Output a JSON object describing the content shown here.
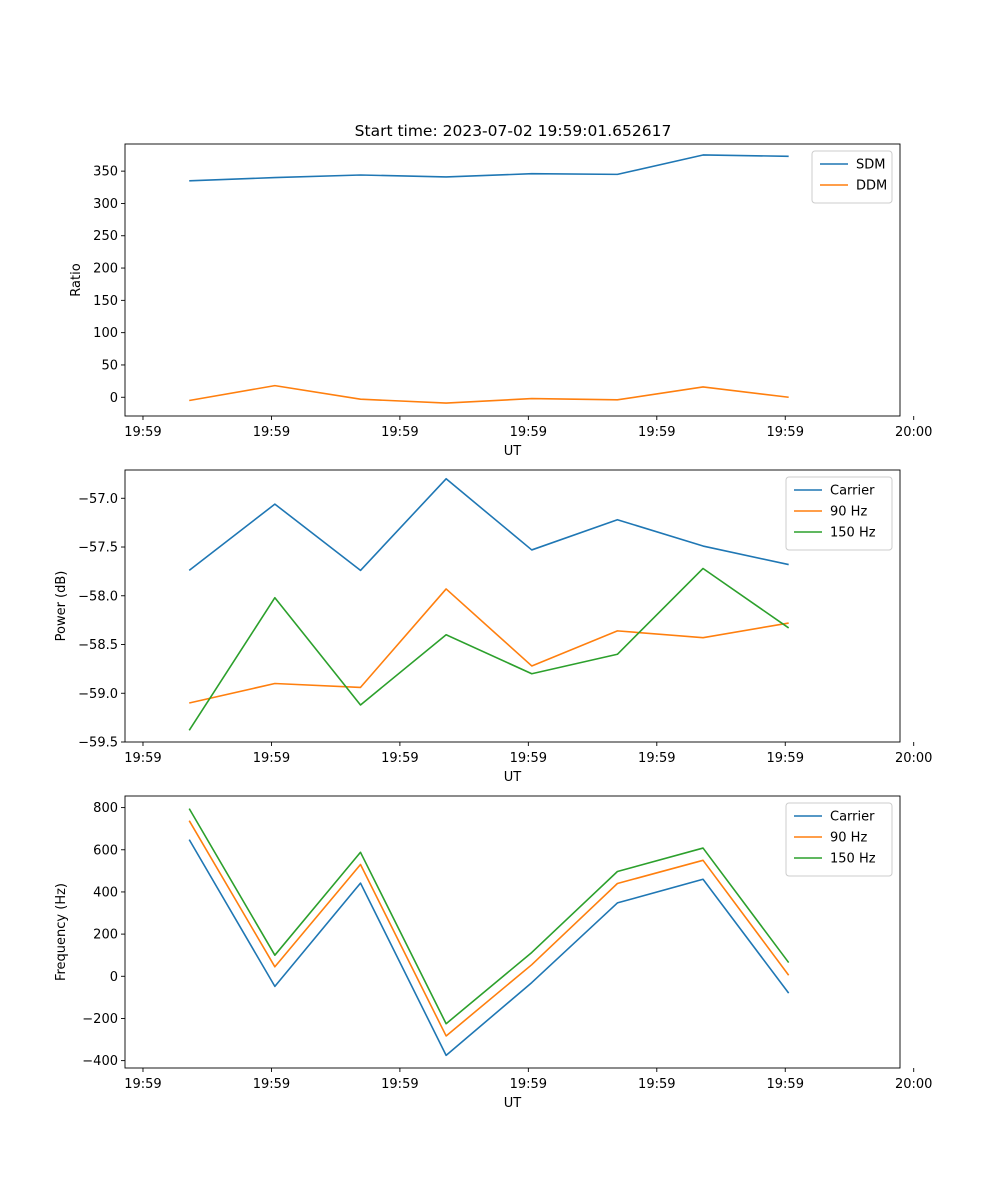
{
  "figure": {
    "title": "Start time: 2023-07-02 19:59:01.652617",
    "colors": {
      "blue": "#1f77b4",
      "orange": "#ff7f0e",
      "green": "#2ca02c"
    }
  },
  "chart_data": [
    {
      "type": "line",
      "title": "Start time: 2023-07-02 19:59:01.652617",
      "xlabel": "UT",
      "ylabel": "Ratio",
      "x": [
        1,
        2,
        3,
        4,
        5,
        6,
        7,
        8
      ],
      "xlim": [
        0.25,
        9.3
      ],
      "xticks": [
        0.46,
        1.96,
        3.46,
        4.96,
        6.46,
        7.96,
        9.46
      ],
      "xtick_labels": [
        "19:59",
        "19:59",
        "19:59",
        "19:59",
        "19:59",
        "19:59",
        "20:00"
      ],
      "ylim": [
        -29,
        392
      ],
      "yticks": [
        0,
        50,
        100,
        150,
        200,
        250,
        300,
        350
      ],
      "ytick_labels": [
        "0",
        "50",
        "100",
        "150",
        "200",
        "250",
        "300",
        "350"
      ],
      "legend": "top-right",
      "series": [
        {
          "name": "SDM",
          "color": "#1f77b4",
          "values": [
            335,
            340,
            344,
            341,
            346,
            345,
            375,
            373
          ]
        },
        {
          "name": "DDM",
          "color": "#ff7f0e",
          "values": [
            -5,
            18,
            -3,
            -9,
            -2,
            -4,
            16,
            0
          ]
        }
      ]
    },
    {
      "type": "line",
      "title": "",
      "xlabel": "UT",
      "ylabel": "Power (dB)",
      "x": [
        1,
        2,
        3,
        4,
        5,
        6,
        7,
        8
      ],
      "xlim": [
        0.25,
        9.3
      ],
      "xticks": [
        0.46,
        1.96,
        3.46,
        4.96,
        6.46,
        7.96,
        9.46
      ],
      "xtick_labels": [
        "19:59",
        "19:59",
        "19:59",
        "19:59",
        "19:59",
        "19:59",
        "20:00"
      ],
      "ylim": [
        -59.5,
        -56.71
      ],
      "yticks": [
        -59.5,
        -59.0,
        -58.5,
        -58.0,
        -57.5,
        -57.0
      ],
      "ytick_labels": [
        "−59.5",
        "−59.0",
        "−58.5",
        "−58.0",
        "−57.5",
        "−57.0"
      ],
      "legend": "top-right",
      "series": [
        {
          "name": "Carrier",
          "color": "#1f77b4",
          "values": [
            -57.74,
            -57.06,
            -57.74,
            -56.8,
            -57.53,
            -57.22,
            -57.49,
            -57.68
          ]
        },
        {
          "name": "90 Hz",
          "color": "#ff7f0e",
          "values": [
            -59.1,
            -58.9,
            -58.94,
            -57.93,
            -58.72,
            -58.36,
            -58.43,
            -58.28
          ]
        },
        {
          "name": "150 Hz",
          "color": "#2ca02c",
          "values": [
            -59.38,
            -58.02,
            -59.12,
            -58.4,
            -58.8,
            -58.6,
            -57.72,
            -58.33
          ]
        }
      ]
    },
    {
      "type": "line",
      "title": "",
      "xlabel": "UT",
      "ylabel": "Frequency (Hz)",
      "x": [
        1,
        2,
        3,
        4,
        5,
        6,
        7,
        8
      ],
      "xlim": [
        0.25,
        9.3
      ],
      "xticks": [
        0.46,
        1.96,
        3.46,
        4.96,
        6.46,
        7.96,
        9.46
      ],
      "xtick_labels": [
        "19:59",
        "19:59",
        "19:59",
        "19:59",
        "19:59",
        "19:59",
        "20:00"
      ],
      "ylim": [
        -435,
        855
      ],
      "yticks": [
        -400,
        -200,
        0,
        200,
        400,
        600,
        800
      ],
      "ytick_labels": [
        "−400",
        "−200",
        "0",
        "200",
        "400",
        "600",
        "800"
      ],
      "legend": "top-right",
      "series": [
        {
          "name": "Carrier",
          "color": "#1f77b4",
          "values": [
            648,
            -48,
            442,
            -375,
            -30,
            348,
            460,
            -80
          ]
        },
        {
          "name": "90 Hz",
          "color": "#ff7f0e",
          "values": [
            738,
            45,
            530,
            -283,
            55,
            440,
            550,
            5
          ]
        },
        {
          "name": "150 Hz",
          "color": "#2ca02c",
          "values": [
            795,
            100,
            588,
            -225,
            113,
            497,
            608,
            65
          ]
        }
      ]
    }
  ]
}
